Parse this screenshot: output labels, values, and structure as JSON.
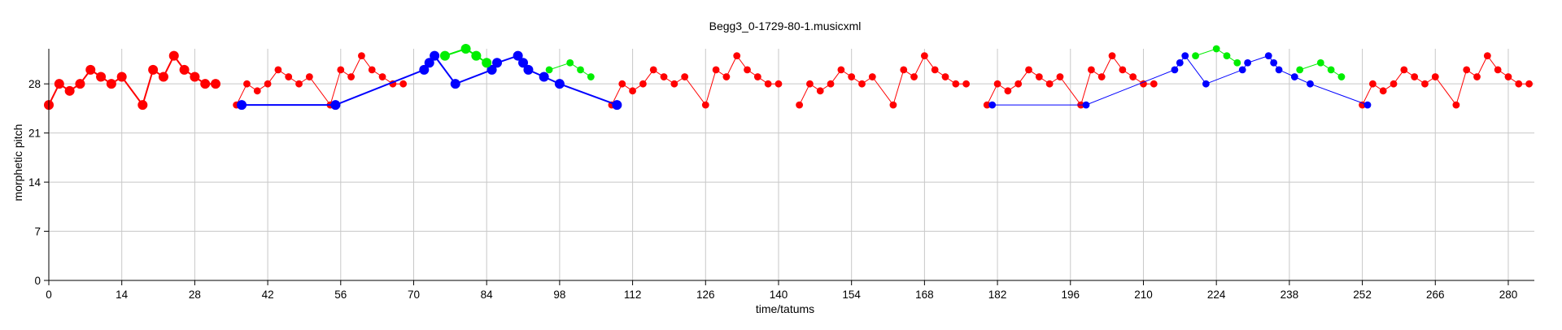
{
  "chart_data": {
    "type": "scatter",
    "title": "Begg3_0-1729-80-1.musicxml",
    "xlabel": "time/tatums",
    "ylabel": "morphetic pitch",
    "xlim": [
      0,
      285
    ],
    "ylim": [
      0,
      33
    ],
    "xticks": [
      0,
      14,
      28,
      42,
      56,
      70,
      84,
      98,
      112,
      126,
      140,
      154,
      168,
      182,
      196,
      210,
      224,
      238,
      252,
      266,
      280
    ],
    "yticks": [
      0,
      7,
      14,
      21,
      28
    ],
    "grid": true,
    "legend": "none",
    "colors": {
      "red": "#ff0000",
      "blue": "#0000ff",
      "green": "#00ee00",
      "grid": "#c8c8c8"
    },
    "series": [
      {
        "color": "red",
        "segments": [
          {
            "size": "large",
            "points": [
              [
                0,
                25
              ],
              [
                2,
                28
              ],
              [
                4,
                27
              ],
              [
                6,
                28
              ],
              [
                8,
                30
              ],
              [
                10,
                29
              ],
              [
                12,
                28
              ],
              [
                14,
                29
              ],
              [
                18,
                25
              ],
              [
                20,
                30
              ],
              [
                22,
                29
              ],
              [
                24,
                32
              ],
              [
                26,
                30
              ],
              [
                28,
                29
              ],
              [
                30,
                28
              ],
              [
                32,
                28
              ]
            ]
          },
          {
            "size": "small",
            "points": [
              [
                36,
                25
              ],
              [
                38,
                28
              ],
              [
                40,
                27
              ],
              [
                42,
                28
              ],
              [
                44,
                30
              ],
              [
                46,
                29
              ],
              [
                48,
                28
              ],
              [
                50,
                29
              ],
              [
                54,
                25
              ],
              [
                56,
                30
              ],
              [
                58,
                29
              ],
              [
                60,
                32
              ],
              [
                62,
                30
              ],
              [
                64,
                29
              ],
              [
                66,
                28
              ],
              [
                68,
                28
              ]
            ]
          },
          {
            "size": "small",
            "points": [
              [
                108,
                25
              ],
              [
                110,
                28
              ],
              [
                112,
                27
              ],
              [
                114,
                28
              ],
              [
                116,
                30
              ],
              [
                118,
                29
              ],
              [
                120,
                28
              ],
              [
                122,
                29
              ],
              [
                126,
                25
              ],
              [
                128,
                30
              ],
              [
                130,
                29
              ],
              [
                132,
                32
              ],
              [
                134,
                30
              ],
              [
                136,
                29
              ],
              [
                138,
                28
              ],
              [
                140,
                28
              ]
            ]
          },
          {
            "size": "small",
            "points": [
              [
                144,
                25
              ],
              [
                146,
                28
              ],
              [
                148,
                27
              ],
              [
                150,
                28
              ],
              [
                152,
                30
              ],
              [
                154,
                29
              ],
              [
                156,
                28
              ],
              [
                158,
                29
              ],
              [
                162,
                25
              ],
              [
                164,
                30
              ],
              [
                166,
                29
              ],
              [
                168,
                32
              ],
              [
                170,
                30
              ],
              [
                172,
                29
              ],
              [
                174,
                28
              ],
              [
                176,
                28
              ]
            ]
          },
          {
            "size": "small",
            "points": [
              [
                180,
                25
              ],
              [
                182,
                28
              ],
              [
                184,
                27
              ],
              [
                186,
                28
              ],
              [
                188,
                30
              ],
              [
                190,
                29
              ],
              [
                192,
                28
              ],
              [
                194,
                29
              ],
              [
                198,
                25
              ],
              [
                200,
                30
              ],
              [
                202,
                29
              ],
              [
                204,
                32
              ],
              [
                206,
                30
              ],
              [
                208,
                29
              ],
              [
                210,
                28
              ],
              [
                212,
                28
              ]
            ]
          },
          {
            "size": "small",
            "points": [
              [
                252,
                25
              ],
              [
                254,
                28
              ],
              [
                256,
                27
              ],
              [
                258,
                28
              ],
              [
                260,
                30
              ],
              [
                262,
                29
              ],
              [
                264,
                28
              ],
              [
                266,
                29
              ],
              [
                270,
                25
              ],
              [
                272,
                30
              ],
              [
                274,
                29
              ],
              [
                276,
                32
              ],
              [
                278,
                30
              ],
              [
                280,
                29
              ],
              [
                282,
                28
              ],
              [
                284,
                28
              ]
            ]
          }
        ]
      },
      {
        "color": "blue",
        "segments": [
          {
            "size": "large",
            "points": [
              [
                37,
                25
              ],
              [
                55,
                25
              ],
              [
                72,
                30
              ],
              [
                73,
                31
              ],
              [
                74,
                32
              ],
              [
                78,
                28
              ],
              [
                85,
                30
              ],
              [
                86,
                31
              ],
              [
                90,
                32
              ],
              [
                91,
                31
              ],
              [
                92,
                30
              ],
              [
                95,
                29
              ],
              [
                98,
                28
              ],
              [
                109,
                25
              ]
            ]
          },
          {
            "size": "small",
            "points": [
              [
                181,
                25
              ],
              [
                199,
                25
              ],
              [
                216,
                30
              ],
              [
                217,
                31
              ],
              [
                218,
                32
              ],
              [
                222,
                28
              ],
              [
                229,
                30
              ],
              [
                230,
                31
              ],
              [
                234,
                32
              ],
              [
                235,
                31
              ],
              [
                236,
                30
              ],
              [
                239,
                29
              ],
              [
                242,
                28
              ],
              [
                253,
                25
              ]
            ]
          }
        ]
      },
      {
        "color": "green",
        "segments": [
          {
            "size": "large",
            "points": [
              [
                76,
                32
              ],
              [
                80,
                33
              ],
              [
                82,
                32
              ],
              [
                84,
                31
              ]
            ]
          },
          {
            "size": "small",
            "points": [
              [
                96,
                30
              ],
              [
                100,
                31
              ],
              [
                102,
                30
              ],
              [
                104,
                29
              ]
            ]
          },
          {
            "size": "small",
            "points": [
              [
                220,
                32
              ],
              [
                224,
                33
              ],
              [
                226,
                32
              ],
              [
                228,
                31
              ]
            ]
          },
          {
            "size": "small",
            "points": [
              [
                240,
                30
              ],
              [
                244,
                31
              ],
              [
                246,
                30
              ],
              [
                248,
                29
              ]
            ]
          }
        ]
      }
    ]
  }
}
